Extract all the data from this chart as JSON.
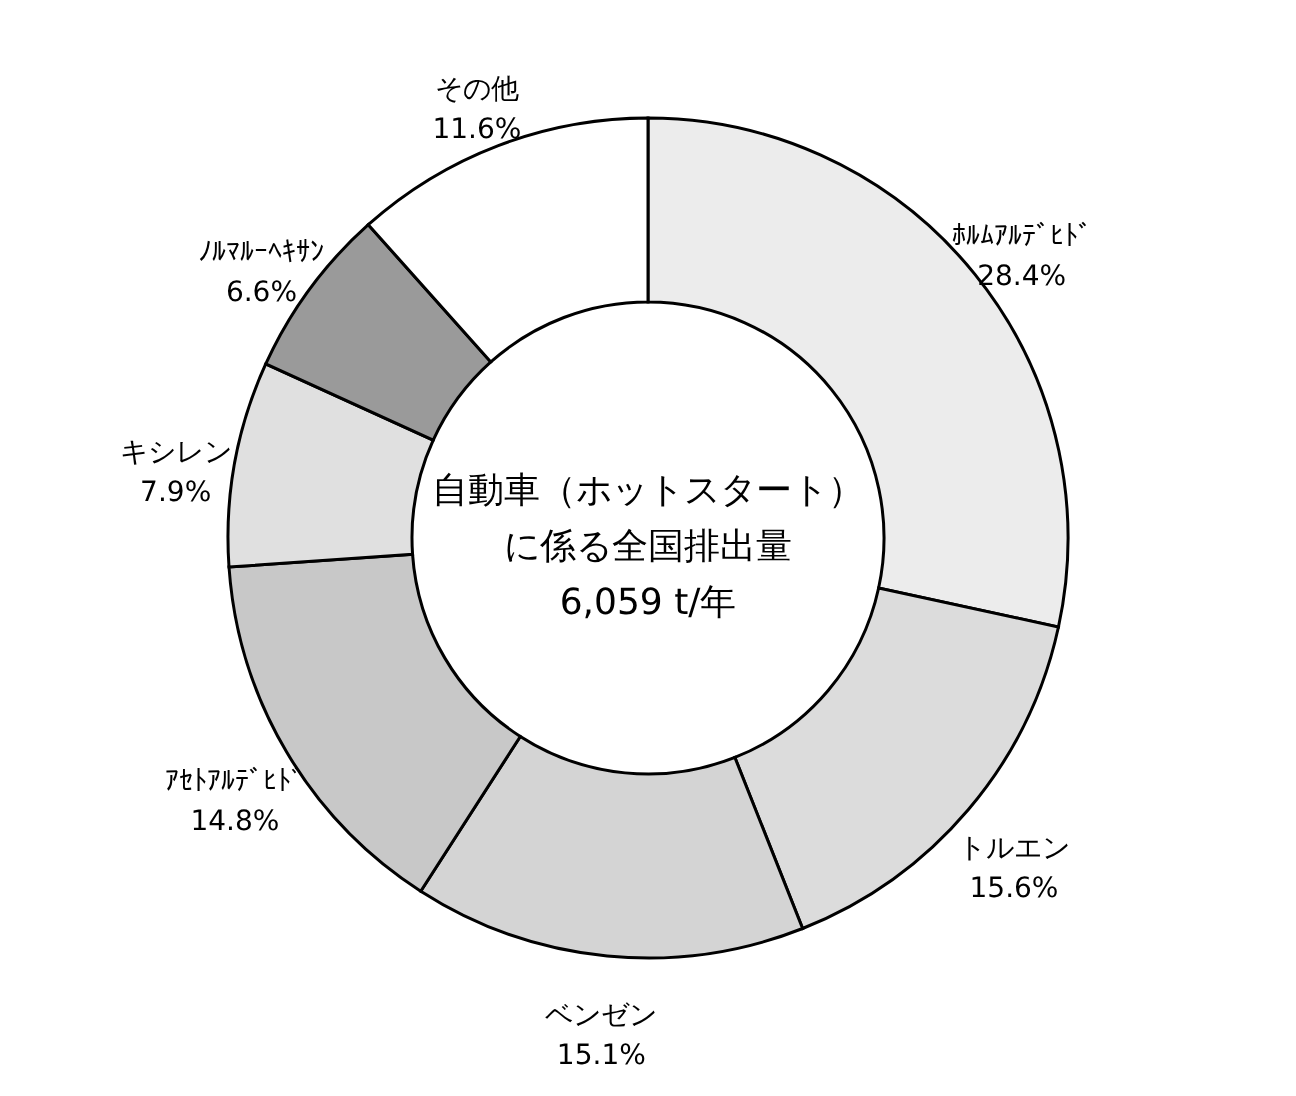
{
  "chart_data": {
    "type": "donut",
    "categories": [
      "ﾎﾙﾑｱﾙﾃﾞﾋﾄﾞ",
      "トルエン",
      "ベンゼン",
      "ｱｾﾄｱﾙﾃﾞﾋﾄﾞ",
      "キシレン",
      "ﾉﾙﾏﾙｰﾍｷｻﾝ",
      "その他"
    ],
    "values": [
      28.4,
      15.6,
      15.1,
      14.8,
      7.9,
      6.6,
      11.6
    ],
    "value_labels": [
      "28.4%",
      "15.6%",
      "15.1%",
      "14.8%",
      "7.9%",
      "6.6%",
      "11.6%"
    ],
    "colors": [
      "#ececec",
      "#dcdcdc",
      "#d4d4d4",
      "#c8c8c8",
      "#e0e0e0",
      "#9a9a9a",
      "#ffffff"
    ],
    "annotations": [
      "自動車（ホットスタート）",
      "に係る全国排出量",
      "6,059 t/年"
    ]
  }
}
